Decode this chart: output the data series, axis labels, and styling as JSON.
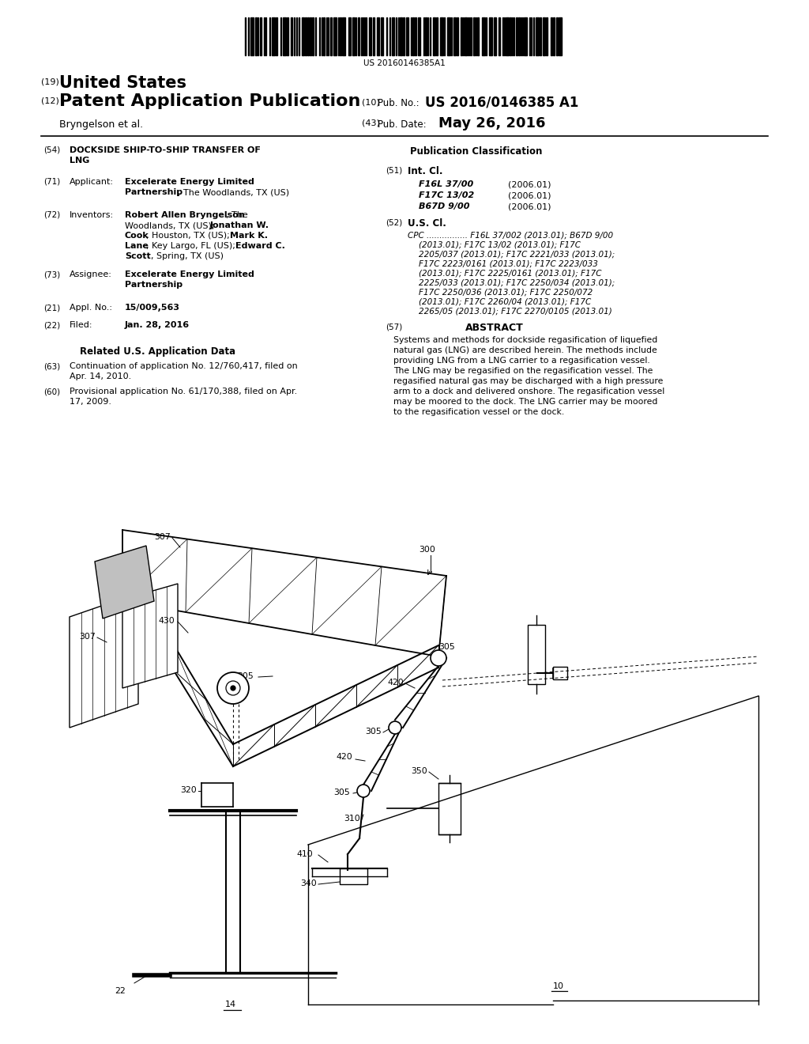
{
  "background_color": "#ffffff",
  "barcode_text": "US 20160146385A1",
  "header": {
    "num19": "(19)",
    "united_states": "United States",
    "num12": "(12)",
    "patent_app": "Patent Application Publication",
    "author": "Bryngelson et al.",
    "num10": "(10)",
    "pub_no_label": "Pub. No.:",
    "pub_no_val": "US 2016/0146385 A1",
    "num43": "(43)",
    "pub_date_label": "Pub. Date:",
    "pub_date_val": "May 26, 2016"
  },
  "int_cl_entries": [
    {
      "code": "F16L 37/00",
      "date": "(2006.01)"
    },
    {
      "code": "F17C 13/02",
      "date": "(2006.01)"
    },
    {
      "code": "B67D 9/00",
      "date": "(2006.01)"
    }
  ],
  "cpc_lines": [
    "CPC ................ F16L 37/002 (2013.01); B67D 9/00",
    "(2013.01); F17C 13/02 (2013.01); F17C",
    "2205/037 (2013.01); F17C 2221/033 (2013.01);",
    "F17C 2223/0161 (2013.01); F17C 2223/033",
    "(2013.01); F17C 2225/0161 (2013.01); F17C",
    "2225/033 (2013.01); F17C 2250/034 (2013.01);",
    "F17C 2250/036 (2013.01); F17C 2250/072",
    "(2013.01); F17C 2260/04 (2013.01); F17C",
    "2265/05 (2013.01); F17C 2270/0105 (2013.01)"
  ],
  "abstract_lines": [
    "Systems and methods for dockside regasification of liquefied",
    "natural gas (LNG) are described herein. The methods include",
    "providing LNG from a LNG carrier to a regasification vessel.",
    "The LNG may be regasified on the regasification vessel. The",
    "regasified natural gas may be discharged with a high pressure",
    "arm to a dock and delivered onshore. The regasification vessel",
    "may be moored to the dock. The LNG carrier may be moored",
    "to the regasification vessel or the dock."
  ]
}
